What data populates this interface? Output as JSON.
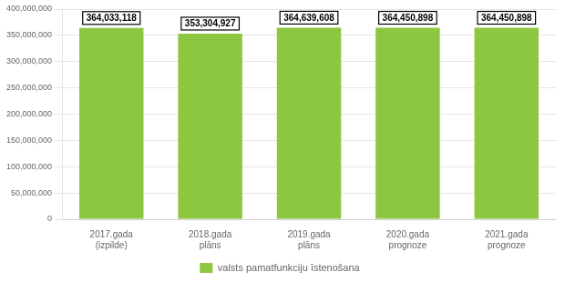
{
  "chart_data": {
    "type": "bar",
    "categories": [
      "2017.gada\n(izpilde)",
      "2018.gada\nplāns",
      "2019.gada\nplāns",
      "2020.gada\nprognoze",
      "2021.gada\nprognoze"
    ],
    "series": [
      {
        "name": "valsts pamatfunkciju īstenošana",
        "color": "#8DC63F",
        "values": [
          364033118,
          353304927,
          364639608,
          364450898,
          364450898
        ],
        "value_labels": [
          "364,033,118",
          "353,304,927",
          "364,639,608",
          "364,450,898",
          "364,450,898"
        ]
      }
    ],
    "data_labels": true,
    "ylim": [
      0,
      400000000
    ],
    "yticks": [
      0,
      {
        "value": 50000000,
        "label": "50,000,000"
      },
      {
        "value": 100000000,
        "label": "100,000,000"
      },
      {
        "value": 150000000,
        "label": "150,000,000"
      },
      {
        "value": 200000000,
        "label": "200,000,000"
      },
      {
        "value": 250000000,
        "label": "250,000,000"
      },
      {
        "value": 300000000,
        "label": "300,000,000"
      },
      {
        "value": 350000000,
        "label": "350,000,000"
      },
      {
        "value": 400000000,
        "label": "400,000,000"
      }
    ],
    "grid": true,
    "legend": "bottom"
  }
}
